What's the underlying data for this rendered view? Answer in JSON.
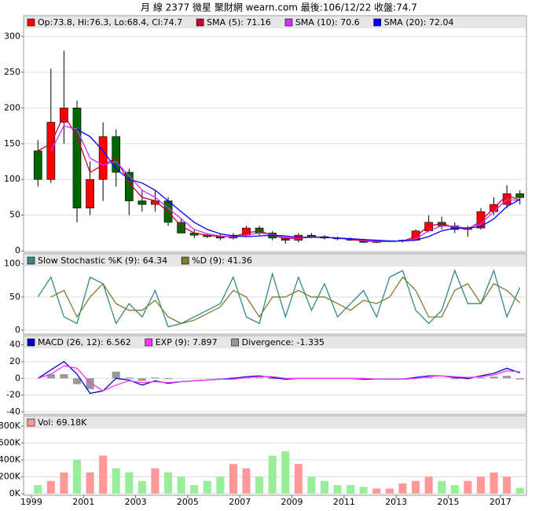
{
  "title": "月 線 2377 微星    聚財網 wearn.com    最後:106/12/22 收盤:74.7",
  "chart_data": [
    {
      "type": "candlestick",
      "ylim": [
        -2,
        329
      ],
      "yticks": [
        0,
        50,
        100,
        150,
        200,
        250,
        300
      ],
      "grid": true,
      "xlim": [
        1998.7,
        2018.0
      ],
      "x": [
        1999.25,
        1999.75,
        2000.25,
        2000.75,
        2001.25,
        2001.75,
        2002.25,
        2002.75,
        2003.25,
        2003.75,
        2004.25,
        2004.75,
        2005.25,
        2005.75,
        2006.25,
        2006.75,
        2007.25,
        2007.75,
        2008.25,
        2008.75,
        2009.25,
        2009.75,
        2010.25,
        2010.75,
        2011.25,
        2011.75,
        2012.25,
        2012.75,
        2013.25,
        2013.75,
        2014.25,
        2014.75,
        2015.25,
        2015.75,
        2016.25,
        2016.75,
        2017.25,
        2017.75
      ],
      "series": [
        {
          "type": "candlestick",
          "name": "Op:73.8, Hi:76.3, Lo:68.4, Cl:74.7",
          "color": "#ff0000",
          "down_color": "#006600",
          "open": [
            140,
            100,
            180,
            200,
            60,
            100,
            160,
            110,
            70,
            65,
            70,
            40,
            25,
            22,
            20,
            18,
            22,
            32,
            25,
            18,
            15,
            22,
            20,
            18,
            17,
            15,
            12,
            13,
            14,
            15,
            28,
            40,
            35,
            30,
            32,
            55,
            65,
            80
          ],
          "high": [
            155,
            255,
            280,
            210,
            125,
            180,
            170,
            115,
            85,
            85,
            75,
            45,
            30,
            25,
            24,
            25,
            35,
            35,
            28,
            20,
            25,
            25,
            22,
            20,
            19,
            17,
            15,
            15,
            16,
            30,
            50,
            48,
            40,
            35,
            60,
            75,
            92,
            85
          ],
          "low": [
            90,
            95,
            150,
            40,
            50,
            70,
            90,
            50,
            55,
            55,
            35,
            25,
            18,
            18,
            15,
            16,
            20,
            22,
            15,
            10,
            12,
            18,
            16,
            15,
            14,
            11,
            11,
            12,
            12,
            14,
            26,
            30,
            25,
            20,
            30,
            50,
            60,
            65
          ],
          "close": [
            100,
            180,
            200,
            60,
            100,
            160,
            110,
            70,
            65,
            70,
            40,
            25,
            22,
            20,
            18,
            22,
            32,
            25,
            18,
            15,
            22,
            20,
            18,
            17,
            15,
            12,
            13,
            14,
            15,
            28,
            40,
            35,
            30,
            32,
            55,
            65,
            80,
            74.7
          ]
        },
        {
          "type": "line",
          "name": "SMA (5): 71.16",
          "color": "#cc0033",
          "values": [
            140,
            150,
            190,
            160,
            110,
            120,
            130,
            95,
            75,
            70,
            55,
            35,
            25,
            22,
            20,
            20,
            25,
            28,
            22,
            17,
            18,
            20,
            19,
            18,
            16,
            14,
            13,
            13,
            14,
            20,
            35,
            38,
            33,
            30,
            42,
            60,
            78,
            71.16
          ]
        },
        {
          "type": "line",
          "name": "SMA (10): 70.6",
          "color": "#cc33ff",
          "values": [
            null,
            140,
            175,
            170,
            130,
            120,
            125,
            105,
            85,
            75,
            60,
            45,
            30,
            24,
            21,
            20,
            22,
            25,
            23,
            19,
            18,
            19,
            19,
            18,
            17,
            15,
            14,
            13,
            14,
            17,
            28,
            35,
            34,
            32,
            38,
            55,
            72,
            70.6
          ]
        },
        {
          "type": "line",
          "name": "SMA (20): 72.04",
          "color": "#0000ff",
          "values": [
            null,
            null,
            null,
            170,
            160,
            140,
            115,
            100,
            95,
            85,
            70,
            55,
            40,
            30,
            24,
            21,
            20,
            21,
            22,
            21,
            19,
            19,
            19,
            18,
            17,
            16,
            15,
            14,
            14,
            15,
            20,
            28,
            32,
            32,
            34,
            45,
            62,
            72.04
          ]
        }
      ]
    },
    {
      "type": "line",
      "ylim": [
        -6,
        115
      ],
      "yticks": [
        0,
        50,
        100
      ],
      "grid": true,
      "series": [
        {
          "type": "line",
          "name": "Slow Stochastic %K (9): 64.34",
          "color": "#338888",
          "values": [
            50,
            80,
            20,
            10,
            80,
            70,
            10,
            40,
            20,
            60,
            5,
            10,
            20,
            30,
            40,
            80,
            20,
            10,
            85,
            20,
            80,
            30,
            70,
            20,
            40,
            60,
            20,
            80,
            90,
            30,
            10,
            30,
            90,
            40,
            40,
            90,
            20,
            64.34
          ]
        },
        {
          "type": "line",
          "name": "%D (9): 41.36",
          "color": "#807a33",
          "values": [
            null,
            50,
            60,
            20,
            50,
            70,
            40,
            30,
            30,
            45,
            20,
            10,
            15,
            25,
            35,
            60,
            50,
            20,
            50,
            50,
            60,
            50,
            50,
            40,
            30,
            45,
            40,
            50,
            80,
            60,
            20,
            20,
            60,
            70,
            40,
            70,
            60,
            41.36
          ]
        }
      ]
    },
    {
      "type": "line",
      "ylim": [
        -43,
        51
      ],
      "yticks": [
        -40,
        -20,
        0,
        20,
        40
      ],
      "grid": true,
      "series": [
        {
          "type": "line",
          "name": "MACD (26, 12): 6.562",
          "color": "#0000cc",
          "values": [
            0,
            10,
            20,
            5,
            -18,
            -15,
            0,
            -2,
            -8,
            -3,
            -6,
            -4,
            -3,
            -2,
            -1,
            0,
            2,
            3,
            1,
            -1,
            0,
            0,
            0,
            0,
            0,
            -1,
            -1,
            -1,
            -1,
            1,
            3,
            3,
            1,
            0,
            3,
            6,
            12,
            6.562
          ]
        },
        {
          "type": "line",
          "name": "EXP (9): 7.897",
          "color": "#ff33ff",
          "values": [
            0,
            5,
            15,
            12,
            -5,
            -15,
            -8,
            -3,
            -5,
            -4,
            -5,
            -4,
            -3,
            -2,
            -1,
            -1,
            1,
            2,
            2,
            0,
            0,
            0,
            0,
            0,
            0,
            0,
            -1,
            -1,
            -1,
            0,
            2,
            3,
            2,
            1,
            2,
            4,
            9,
            7.897
          ]
        },
        {
          "type": "bar",
          "name": "Divergence: -1.335",
          "color": "#999999",
          "values": [
            0,
            5,
            5,
            -7,
            -13,
            0,
            8,
            1,
            -3,
            1,
            -1,
            0,
            0,
            0,
            0,
            1,
            1,
            1,
            -1,
            -1,
            0,
            0,
            0,
            0,
            0,
            -1,
            0,
            0,
            0,
            1,
            1,
            0,
            -1,
            -1,
            1,
            2,
            3,
            -1.335
          ]
        }
      ]
    },
    {
      "type": "bar",
      "ylim": [
        -20000,
        920000
      ],
      "grid": true,
      "yticks": [
        {
          "value": 0,
          "label": "0K"
        },
        {
          "value": 200000,
          "label": "200K"
        },
        {
          "value": 400000,
          "label": "400K"
        },
        {
          "value": 600000,
          "label": "600K"
        },
        {
          "value": 800000,
          "label": "800K"
        }
      ],
      "xticks": [
        1999,
        2001,
        2003,
        2005,
        2007,
        2009,
        2011,
        2013,
        2015,
        2017
      ],
      "series": [
        {
          "type": "bar",
          "name": "Vol: 69.18K",
          "color": "#ff9999",
          "down_color": "#99ee99",
          "values": [
            100000,
            150000,
            250000,
            400000,
            250000,
            450000,
            300000,
            250000,
            150000,
            300000,
            250000,
            200000,
            100000,
            150000,
            200000,
            350000,
            300000,
            200000,
            450000,
            500000,
            350000,
            200000,
            150000,
            100000,
            100000,
            80000,
            60000,
            60000,
            120000,
            150000,
            200000,
            150000,
            100000,
            150000,
            200000,
            250000,
            200000,
            69180
          ]
        }
      ]
    }
  ]
}
